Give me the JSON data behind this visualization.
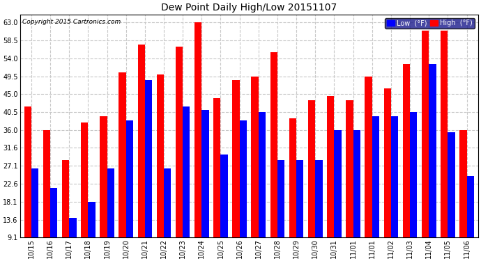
{
  "title": "Dew Point Daily High/Low 20151107",
  "copyright": "Copyright 2015 Cartronics.com",
  "categories": [
    "10/15",
    "10/16",
    "10/17",
    "10/18",
    "10/19",
    "10/20",
    "10/21",
    "10/22",
    "10/23",
    "10/24",
    "10/25",
    "10/26",
    "10/27",
    "10/28",
    "10/29",
    "10/30",
    "10/31",
    "11/01",
    "11/01",
    "11/02",
    "11/03",
    "11/04",
    "11/05",
    "11/06"
  ],
  "high_values": [
    42.0,
    36.0,
    28.5,
    38.0,
    39.5,
    50.5,
    57.5,
    50.0,
    57.0,
    63.0,
    44.0,
    48.5,
    49.5,
    55.5,
    39.0,
    43.5,
    44.5,
    43.5,
    49.5,
    46.5,
    52.5,
    61.0,
    61.0,
    36.0
  ],
  "low_values": [
    26.5,
    21.5,
    14.0,
    18.0,
    26.5,
    38.5,
    48.5,
    26.5,
    42.0,
    41.0,
    30.0,
    38.5,
    40.5,
    28.5,
    28.5,
    28.5,
    36.0,
    36.0,
    39.5,
    39.5,
    40.5,
    52.5,
    35.5,
    24.5
  ],
  "high_color": "#FF0000",
  "low_color": "#0000FF",
  "background_color": "#FFFFFF",
  "plot_bg_color": "#FFFFFF",
  "grid_color": "#AAAAAA",
  "yticks": [
    9.1,
    13.6,
    18.1,
    22.6,
    27.1,
    31.6,
    36.0,
    40.5,
    45.0,
    49.5,
    54.0,
    58.5,
    63.0
  ],
  "ymin": 9.1,
  "ymax": 65.0,
  "bar_width": 0.38
}
